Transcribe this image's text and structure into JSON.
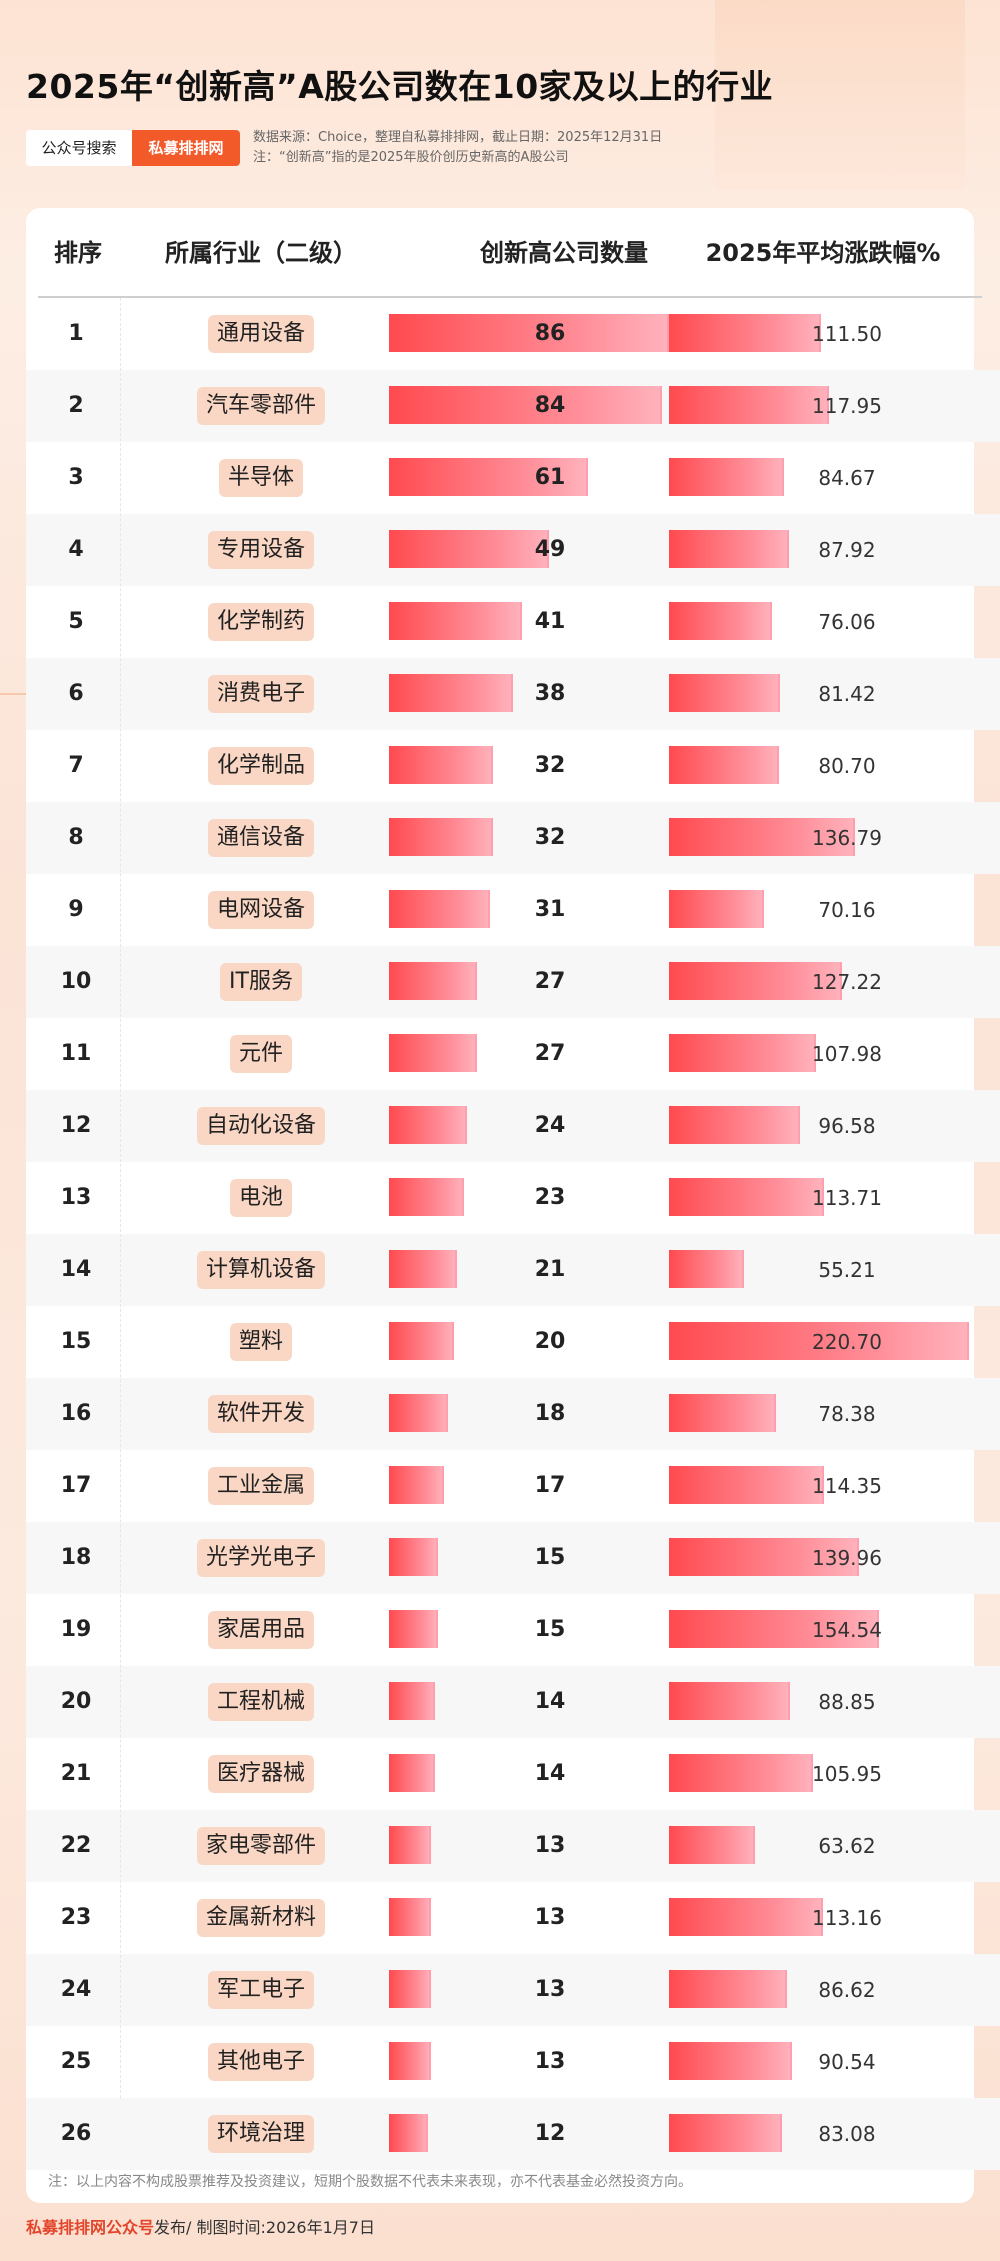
{
  "title": "2025年“创新高”A股公司数在10家及以上的行业",
  "tags": {
    "left": "公众号搜索",
    "right": "私募排排网"
  },
  "meta": {
    "source": "数据来源：Choice，整理自私募排排网，截止日期：2025年12月31日",
    "note": "注：“创新高”指的是2025年股价创历史新高的A股公司"
  },
  "headers": {
    "rank": "排序",
    "industry": "所属行业（二级）",
    "count": "创新高公司数量",
    "return": "2025年平均涨跌幅%"
  },
  "chart_data": {
    "type": "table",
    "columns": [
      "排序",
      "所属行业（二级）",
      "创新高公司数量",
      "2025年平均涨跌幅%"
    ],
    "rows": [
      {
        "rank": "1",
        "industry": "通用设备",
        "count": 86,
        "return": "111.50"
      },
      {
        "rank": "2",
        "industry": "汽车零部件",
        "count": 84,
        "return": "117.95"
      },
      {
        "rank": "3",
        "industry": "半导体",
        "count": 61,
        "return": "84.67"
      },
      {
        "rank": "4",
        "industry": "专用设备",
        "count": 49,
        "return": "87.92"
      },
      {
        "rank": "5",
        "industry": "化学制药",
        "count": 41,
        "return": "76.06"
      },
      {
        "rank": "6",
        "industry": "消费电子",
        "count": 38,
        "return": "81.42"
      },
      {
        "rank": "7",
        "industry": "化学制品",
        "count": 32,
        "return": "80.70"
      },
      {
        "rank": "8",
        "industry": "通信设备",
        "count": 32,
        "return": "136.79"
      },
      {
        "rank": "9",
        "industry": "电网设备",
        "count": 31,
        "return": "70.16"
      },
      {
        "rank": "10",
        "industry": "IT服务",
        "count": 27,
        "return": "127.22"
      },
      {
        "rank": "11",
        "industry": "元件",
        "count": 27,
        "return": "107.98"
      },
      {
        "rank": "12",
        "industry": "自动化设备",
        "count": 24,
        "return": "96.58"
      },
      {
        "rank": "13",
        "industry": "电池",
        "count": 23,
        "return": "113.71"
      },
      {
        "rank": "14",
        "industry": "计算机设备",
        "count": 21,
        "return": "55.21"
      },
      {
        "rank": "15",
        "industry": "塑料",
        "count": 20,
        "return": "220.70"
      },
      {
        "rank": "16",
        "industry": "软件开发",
        "count": 18,
        "return": "78.38"
      },
      {
        "rank": "17",
        "industry": "工业金属",
        "count": 17,
        "return": "114.35"
      },
      {
        "rank": "18",
        "industry": "光学光电子",
        "count": 15,
        "return": "139.96"
      },
      {
        "rank": "19",
        "industry": "家居用品",
        "count": 15,
        "return": "154.54"
      },
      {
        "rank": "20",
        "industry": "工程机械",
        "count": 14,
        "return": "88.85"
      },
      {
        "rank": "21",
        "industry": "医疗器械",
        "count": 14,
        "return": "105.95"
      },
      {
        "rank": "22",
        "industry": "家电零部件",
        "count": 13,
        "return": "63.62"
      },
      {
        "rank": "23",
        "industry": "金属新材料",
        "count": 13,
        "return": "113.16"
      },
      {
        "rank": "24",
        "industry": "军工电子",
        "count": 13,
        "return": "86.62"
      },
      {
        "rank": "25",
        "industry": "其他电子",
        "count": 13,
        "return": "90.54"
      },
      {
        "rank": "26",
        "industry": "环境治理",
        "count": 12,
        "return": "83.08"
      }
    ],
    "count_max": 86,
    "return_max": 220.7,
    "bar_colors": [
      "#ff4a4f",
      "#ffb3bd"
    ]
  },
  "footnote": "注：以上内容不构成股票推荐及投资建议，短期个股数据不代表未来表现，亦不代表基金必然投资方向。",
  "bottom": {
    "brand": "私募排排网公众号",
    "rest": "发布/ 制图时间:2026年1月7日"
  }
}
